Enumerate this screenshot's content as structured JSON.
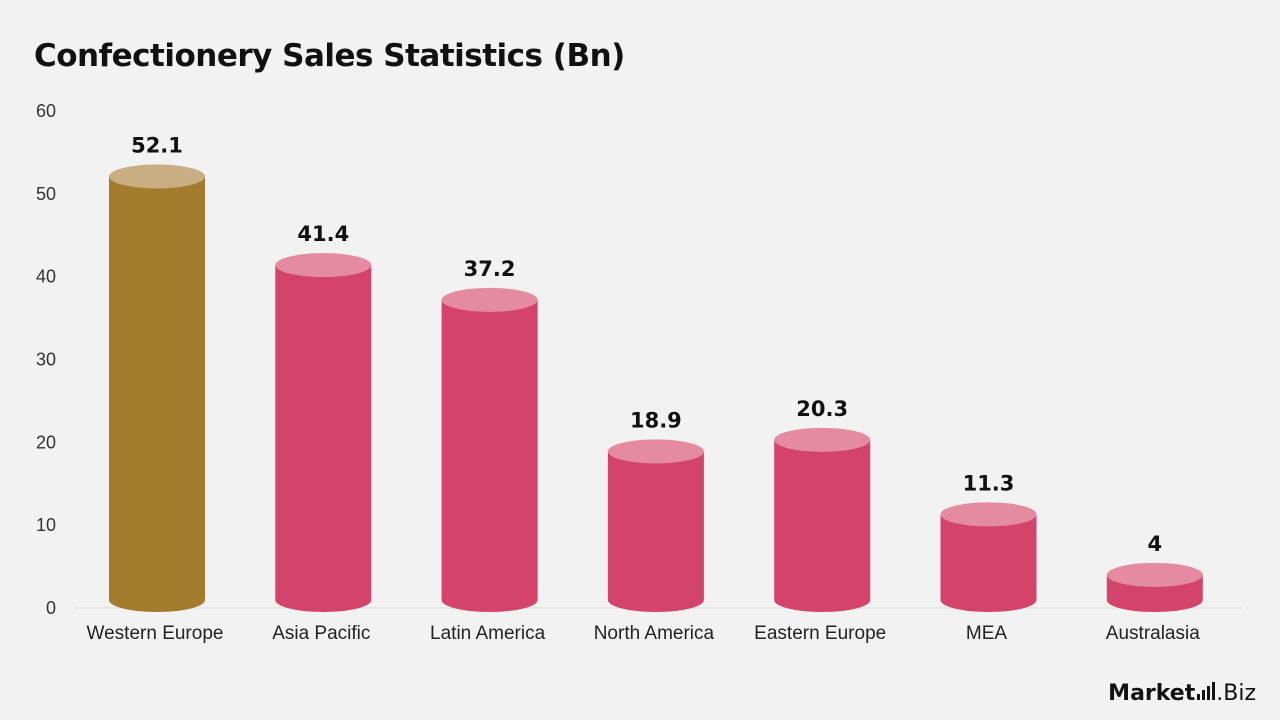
{
  "chart_data": {
    "type": "bar",
    "title": "Confectionery Sales Statistics (Bn)",
    "categories": [
      "Western Europe",
      "Asia Pacific",
      "Latin America",
      "North America",
      "Eastern Europe",
      "MEA",
      "Australasia"
    ],
    "values": [
      52.1,
      41.4,
      37.2,
      18.9,
      20.3,
      11.3,
      4
    ],
    "value_labels": [
      "52.1",
      "41.4",
      "37.2",
      "18.9",
      "20.3",
      "11.3",
      "4"
    ],
    "ylim": [
      0,
      60
    ],
    "yticks": [
      "0",
      "10",
      "20",
      "30",
      "40",
      "50",
      "60"
    ],
    "xlabel": "",
    "ylabel": "",
    "grid": false,
    "style": "cylinder",
    "colors": {
      "highlight_body": "#a27b2d",
      "highlight_top": "#c8ae82",
      "body": "#d4446a",
      "top": "#e48ba0",
      "axis_line": "#d9d9d9"
    },
    "highlight_index": 0
  },
  "brand": {
    "part1": "Market",
    "part2": ".Biz"
  }
}
